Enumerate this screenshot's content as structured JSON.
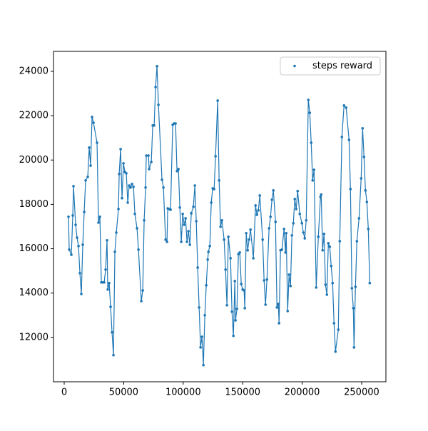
{
  "chart_data": {
    "type": "scatter",
    "connect_points": true,
    "legend": "upper right",
    "xlim": [
      -9000,
      270400
    ],
    "ylim": [
      10000,
      24900
    ],
    "xticks": [
      0,
      50000,
      100000,
      150000,
      200000,
      250000
    ],
    "yticks": [
      12000,
      14000,
      16000,
      18000,
      20000,
      22000,
      24000
    ],
    "series": [
      {
        "name": "steps reward",
        "color": "#1f77b4",
        "x": [
          3600,
          4200,
          6000,
          7200,
          7800,
          9600,
          10800,
          12000,
          13200,
          14400,
          15600,
          16800,
          18000,
          19800,
          21000,
          22200,
          23400,
          24600,
          27600,
          28800,
          30000,
          31200,
          32400,
          33600,
          34800,
          36000,
          36600,
          37800,
          39000,
          40200,
          41400,
          42600,
          43800,
          45600,
          46200,
          47400,
          48600,
          49800,
          51000,
          52200,
          53400,
          54600,
          55800,
          57000,
          58200,
          59400,
          61200,
          62400,
          64800,
          66000,
          67200,
          68400,
          69000,
          70800,
          71400,
          73200,
          74400,
          75600,
          76800,
          78000,
          79200,
          82200,
          83400,
          85200,
          86400,
          87000,
          88200,
          89400,
          91200,
          92400,
          93600,
          94800,
          96000,
          97200,
          98400,
          99600,
          100800,
          102000,
          103200,
          104400,
          105600,
          106800,
          108600,
          109800,
          111000,
          112200,
          113400,
          114600,
          115800,
          117000,
          118200,
          119400,
          120600,
          121200,
          122400,
          123600,
          124800,
          126000,
          127200,
          129000,
          130200,
          131400,
          132600,
          134400,
          135600,
          136800,
          138000,
          139800,
          141000,
          142200,
          143400,
          144000,
          145200,
          146400,
          147600,
          148800,
          150000,
          151200,
          151800,
          153000,
          154200,
          155400,
          156600,
          159000,
          160800,
          162000,
          163200,
          164400,
          166800,
          168000,
          169200,
          170400,
          172200,
          173400,
          174600,
          175800,
          177600,
          178800,
          180000,
          180600,
          181800,
          183000,
          184800,
          186000,
          186600,
          187800,
          189000,
          190200,
          191400,
          192600,
          193800,
          195000,
          196200,
          198000,
          199800,
          201000,
          202200,
          203400,
          205200,
          206400,
          207600,
          208800,
          210000,
          211800,
          213600,
          215400,
          216000,
          217200,
          218400,
          219600,
          220800,
          222000,
          223200,
          224400,
          225600,
          226800,
          228000,
          230400,
          231600,
          233400,
          235200,
          237000,
          239400,
          240600,
          241800,
          243000,
          243600,
          244800,
          246000,
          247800,
          249600,
          250800,
          252000,
          253200,
          254400,
          255600,
          256800
        ],
        "values": [
          17440,
          15960,
          15730,
          17500,
          18820,
          17080,
          16500,
          16120,
          14900,
          13960,
          16180,
          17660,
          19080,
          19240,
          20560,
          19750,
          21940,
          21680,
          20780,
          17180,
          17440,
          14480,
          14480,
          14480,
          15060,
          16380,
          14160,
          14450,
          13380,
          12230,
          11200,
          15860,
          16730,
          17790,
          19370,
          20490,
          18280,
          19850,
          19460,
          19400,
          18080,
          18850,
          18760,
          18920,
          18790,
          17570,
          16920,
          15960,
          13640,
          14120,
          17280,
          18760,
          20200,
          20200,
          19590,
          19910,
          21560,
          21560,
          23290,
          24230,
          22490,
          19110,
          18760,
          16410,
          16310,
          17820,
          17790,
          17760,
          21590,
          21650,
          21650,
          19500,
          19590,
          17860,
          16310,
          17570,
          17080,
          17370,
          16310,
          16790,
          16180,
          17600,
          17890,
          18850,
          17240,
          15150,
          13350,
          11550,
          12030,
          10750,
          13000,
          14350,
          15510,
          15860,
          16120,
          18080,
          18720,
          18690,
          20170,
          22680,
          19080,
          16990,
          17280,
          16410,
          15060,
          13450,
          16540,
          15570,
          13160,
          12070,
          14540,
          12770,
          13290,
          15760,
          15830,
          14410,
          14160,
          14120,
          13320,
          16700,
          15930,
          16410,
          16860,
          15570,
          17950,
          17530,
          17730,
          18400,
          16410,
          14570,
          13480,
          14610,
          16920,
          17440,
          18210,
          18630,
          17210,
          13350,
          13510,
          12640,
          15930,
          15960,
          16890,
          15830,
          16700,
          13190,
          14830,
          14320,
          16600,
          17150,
          18240,
          17790,
          18600,
          17570,
          17150,
          16730,
          16470,
          17280,
          22710,
          22130,
          20780,
          19080,
          19560,
          14250,
          16540,
          18340,
          18440,
          15930,
          16670,
          14380,
          13930,
          16250,
          16090,
          15220,
          14450,
          12640,
          11360,
          12350,
          16340,
          21040,
          22460,
          22360,
          20910,
          18690,
          14220,
          13320,
          11550,
          14280,
          16340,
          17370,
          19170,
          21430,
          20140,
          18630,
          18110,
          16890,
          14450
        ]
      }
    ]
  }
}
